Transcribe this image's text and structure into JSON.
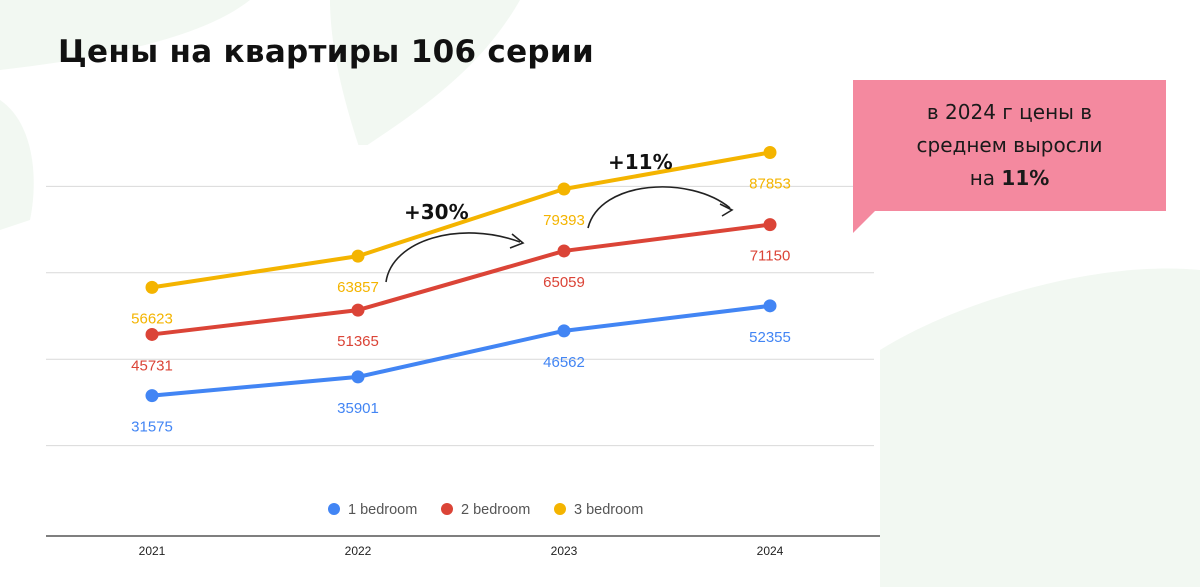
{
  "title": "Цены на квартиры 106 серии",
  "callout": {
    "line1": "в 2024 г цены в",
    "line2": "среднем выросли",
    "line3_prefix": "на ",
    "line3_bold": "11%"
  },
  "annotations": [
    {
      "text": "+30%"
    },
    {
      "text": "+11%"
    }
  ],
  "colors": {
    "series_1bedroom": "#4285f4",
    "series_2bedroom": "#db4437",
    "series_3bedroom": "#f4b400",
    "callout_bg": "#f4899f",
    "background_shape": "#f1f8f1"
  },
  "chart_data": {
    "type": "line",
    "categories": [
      "2021",
      "2022",
      "2023",
      "2024"
    ],
    "series": [
      {
        "name": "1 bedroom",
        "values": [
          31575,
          35901,
          46562,
          52355
        ],
        "labels": [
          "31575",
          "35901",
          "46562",
          "52355"
        ]
      },
      {
        "name": "2 bedroom",
        "values": [
          45731,
          51365,
          65059,
          71150
        ],
        "labels": [
          "45731",
          "51365",
          "65059",
          "71150"
        ]
      },
      {
        "name": "3 bedroom",
        "values": [
          56623,
          63857,
          79393,
          87853
        ],
        "labels": [
          "56623",
          "63857",
          "79393",
          "87853"
        ]
      }
    ],
    "ylim": [
      0,
      100000
    ],
    "grid": true,
    "legend": "bottom"
  }
}
